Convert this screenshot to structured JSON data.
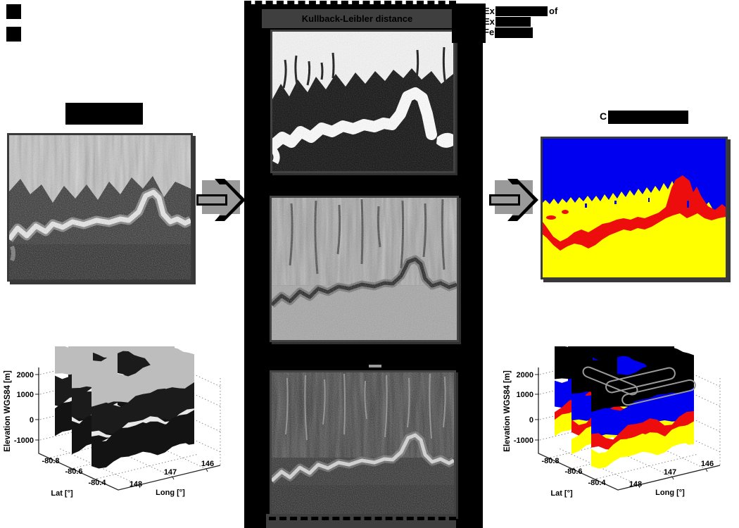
{
  "middle_panel": {
    "header": "Kullback-Leibler distance",
    "strip_color": "#000000",
    "bar_color": "#3f3f3f"
  },
  "caption": {
    "line1_start": "Ex",
    "line1_end": "of",
    "line2_start": "Ex",
    "line3_start": "Fe"
  },
  "right_title": {
    "visible": "C"
  },
  "colors": {
    "frame_gray": "#3a3a3a",
    "arrow_box_gray": "#9a9a9a",
    "class_blue": "#0000f0",
    "class_red": "#ee0d0d",
    "class_yellow": "#ffff00",
    "fence_cap_gray": "#bdbdbd",
    "fence_dark": "#1b1b1b"
  },
  "chart_data": [
    {
      "type": "fence-3d",
      "name": "test-data-radargram-fences",
      "style": "grayscale",
      "ylabel": "Elevation WGS84 [m]",
      "xlabel": "Lat [°]",
      "zlabel": "Long [°]",
      "elev_ticks": [
        "2000",
        "1000",
        "0",
        "-1000"
      ],
      "lat_ticks": [
        "-80.8",
        "-80.6",
        "-80.4"
      ],
      "long_ticks": [
        "148",
        "147",
        "146"
      ],
      "ylim": [
        -1000,
        2000
      ],
      "grid": "dotted"
    },
    {
      "type": "fence-3d",
      "name": "classification-result-fences",
      "style": "classes",
      "ylabel": "Elevation WGS84 [m]",
      "xlabel": "Lat [°]",
      "zlabel": "Long [°]",
      "elev_ticks": [
        "2000",
        "1000",
        "0",
        "-1000"
      ],
      "lat_ticks": [
        "-80.8",
        "-80.6",
        "-80.4"
      ],
      "long_ticks": [
        "148",
        "147",
        "146"
      ],
      "ylim": [
        -1000,
        2000
      ],
      "grid": "dotted",
      "class_colors": [
        "#000000",
        "#0000f0",
        "#ee0d0d",
        "#ffff00"
      ]
    }
  ]
}
